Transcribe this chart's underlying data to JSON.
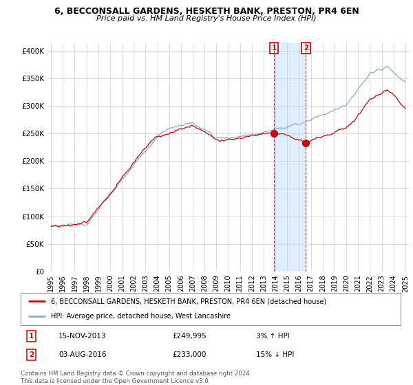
{
  "title1": "6, BECCONSALL GARDENS, HESKETH BANK, PRESTON, PR4 6EN",
  "title2": "Price paid vs. HM Land Registry's House Price Index (HPI)",
  "ytick_values": [
    0,
    50000,
    100000,
    150000,
    200000,
    250000,
    300000,
    350000,
    400000
  ],
  "ylim": [
    0,
    415000
  ],
  "line_color_property": "#cc0000",
  "line_color_hpi": "#88aacc",
  "shade_color": "#ddeeff",
  "legend_label_property": "6, BECCONSALL GARDENS, HESKETH BANK, PRESTON, PR4 6EN (detached house)",
  "legend_label_hpi": "HPI: Average price, detached house, West Lancashire",
  "annotation1_date": "15-NOV-2013",
  "annotation1_price": "£249,995",
  "annotation1_hpi": "3% ↑ HPI",
  "annotation2_date": "03-AUG-2016",
  "annotation2_price": "£233,000",
  "annotation2_hpi": "15% ↓ HPI",
  "footer": "Contains HM Land Registry data © Crown copyright and database right 2024.\nThis data is licensed under the Open Government Licence v3.0.",
  "vline1_x": 2013.875,
  "vline2_x": 2016.583,
  "sale1_x": 2013.875,
  "sale1_y": 249995,
  "sale2_x": 2016.583,
  "sale2_y": 233000,
  "background_color": "#ffffff",
  "grid_color": "#cccccc",
  "xlim_left": 1994.7,
  "xlim_right": 2025.3
}
